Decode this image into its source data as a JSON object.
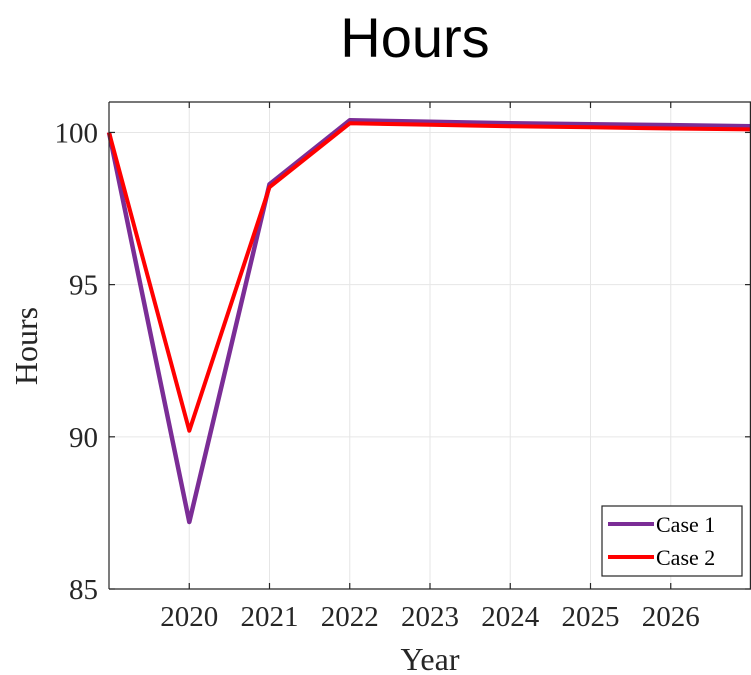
{
  "chart_data": {
    "type": "line",
    "title": "Hours",
    "xlabel": "Year",
    "ylabel": "Hours",
    "xlim": [
      2019,
      2027
    ],
    "ylim": [
      85,
      101
    ],
    "x_ticks": [
      2020,
      2021,
      2022,
      2023,
      2024,
      2025,
      2026
    ],
    "y_ticks": [
      85,
      90,
      95,
      100
    ],
    "grid": true,
    "legend_position": "bottom-right",
    "x": [
      2019,
      2020,
      2021,
      2022,
      2023,
      2024,
      2025,
      2026,
      2027
    ],
    "series": [
      {
        "name": "Case 1",
        "color": "#7B2D96",
        "values": [
          100.0,
          87.2,
          98.3,
          100.4,
          100.35,
          100.3,
          100.27,
          100.24,
          100.2
        ]
      },
      {
        "name": "Case 2",
        "color": "#FF0000",
        "values": [
          100.0,
          90.2,
          98.2,
          100.3,
          100.25,
          100.2,
          100.17,
          100.13,
          100.1
        ]
      }
    ]
  }
}
